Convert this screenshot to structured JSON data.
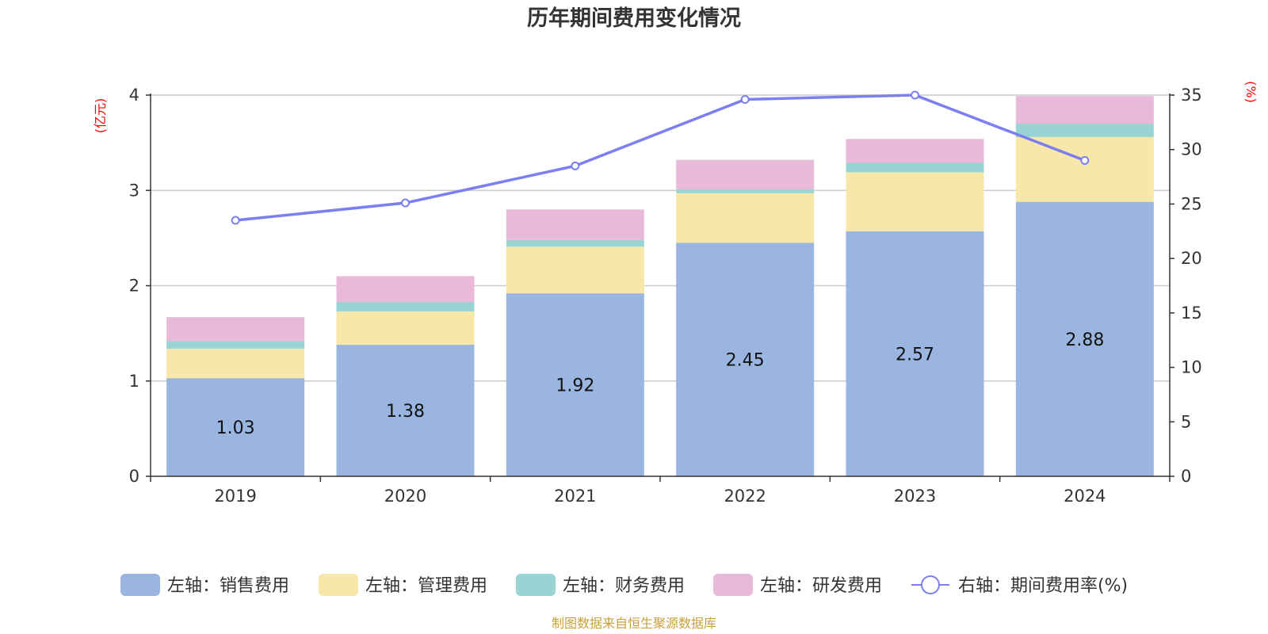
{
  "chart_data": {
    "type": "bar",
    "title": "历年期间费用变化情况",
    "categories": [
      "2019",
      "2020",
      "2021",
      "2022",
      "2023",
      "2024"
    ],
    "left_axis": {
      "unit": "(亿元)",
      "ylim": [
        0,
        4
      ],
      "ticks": [
        "0",
        "1",
        "2",
        "3",
        "4"
      ]
    },
    "right_axis": {
      "unit": "(%)",
      "ylim": [
        0,
        35
      ],
      "ticks": [
        "0",
        "5",
        "10",
        "15",
        "20",
        "25",
        "30",
        "35"
      ]
    },
    "series": [
      {
        "name": "左轴：销售费用",
        "axis": "left",
        "type": "stacked-bar",
        "color": "#9ab6e0",
        "values": [
          1.03,
          1.38,
          1.92,
          2.45,
          2.57,
          2.88
        ],
        "labels": [
          "1.03",
          "1.38",
          "1.92",
          "2.45",
          "2.57",
          "2.88"
        ]
      },
      {
        "name": "左轴：管理费用",
        "axis": "left",
        "type": "stacked-bar",
        "color": "#f7e7a8",
        "values": [
          0.31,
          0.35,
          0.49,
          0.52,
          0.62,
          0.68
        ]
      },
      {
        "name": "左轴：财务费用",
        "axis": "left",
        "type": "stacked-bar",
        "color": "#98d4d4",
        "values": [
          0.08,
          0.1,
          0.07,
          0.04,
          0.1,
          0.14
        ]
      },
      {
        "name": "左轴：研发费用",
        "axis": "left",
        "type": "stacked-bar",
        "color": "#e8b9d9",
        "values": [
          0.25,
          0.27,
          0.32,
          0.31,
          0.25,
          0.29
        ]
      },
      {
        "name": "右轴：期间费用率(%)",
        "axis": "right",
        "type": "line",
        "color": "#7b7ff0",
        "values": [
          23.5,
          25.1,
          28.5,
          34.6,
          35.0,
          29.0
        ]
      }
    ],
    "legend_position": "bottom",
    "grid": true
  },
  "source_text": "制图数据来自恒生聚源数据库"
}
